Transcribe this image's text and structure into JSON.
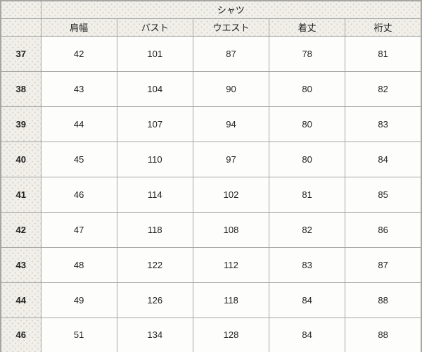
{
  "table": {
    "title": "シャツ",
    "corner_label": "",
    "columns": [
      "肩幅",
      "バスト",
      "ウエスト",
      "着丈",
      "裄丈"
    ],
    "rows": [
      {
        "size": "37",
        "cells": [
          "42",
          "101",
          "87",
          "78",
          "81"
        ]
      },
      {
        "size": "38",
        "cells": [
          "43",
          "104",
          "90",
          "80",
          "82"
        ]
      },
      {
        "size": "39",
        "cells": [
          "44",
          "107",
          "94",
          "80",
          "83"
        ]
      },
      {
        "size": "40",
        "cells": [
          "45",
          "110",
          "97",
          "80",
          "84"
        ]
      },
      {
        "size": "41",
        "cells": [
          "46",
          "114",
          "102",
          "81",
          "85"
        ]
      },
      {
        "size": "42",
        "cells": [
          "47",
          "118",
          "108",
          "82",
          "86"
        ]
      },
      {
        "size": "43",
        "cells": [
          "48",
          "122",
          "112",
          "83",
          "87"
        ]
      },
      {
        "size": "44",
        "cells": [
          "49",
          "126",
          "118",
          "84",
          "88"
        ]
      },
      {
        "size": "46",
        "cells": [
          "51",
          "134",
          "128",
          "84",
          "88"
        ]
      }
    ],
    "colors": {
      "header_bg": "#f0efe9",
      "dot_color": "#d8d4c8",
      "border": "#a6a6a2",
      "cell_bg": "#fdfdfc",
      "text": "#1f1f1f",
      "bottom_bar": "#96968f"
    }
  }
}
